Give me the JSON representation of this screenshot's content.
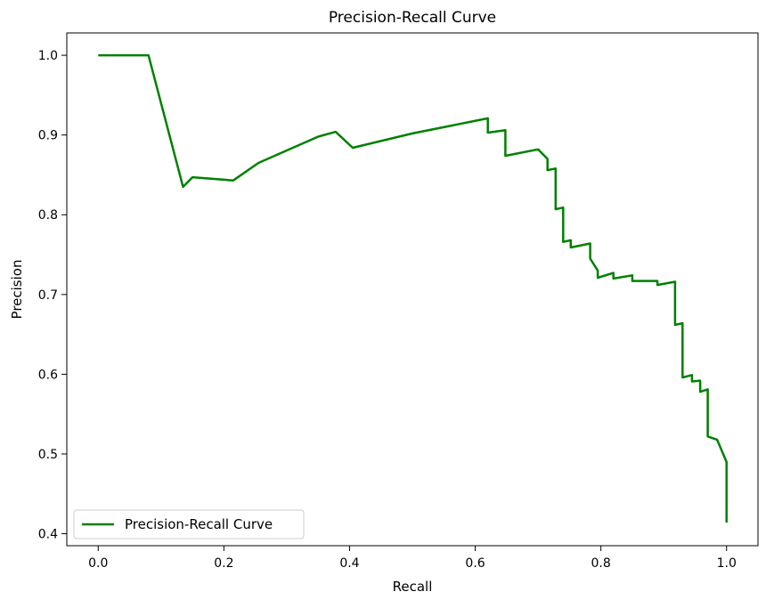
{
  "chart_data": {
    "type": "line",
    "title": "Precision-Recall Curve",
    "xlabel": "Recall",
    "ylabel": "Precision",
    "xlim": [
      -0.05,
      1.05
    ],
    "ylim": [
      0.385,
      1.028
    ],
    "xticks": [
      0.0,
      0.2,
      0.4,
      0.6,
      0.8,
      1.0
    ],
    "xtick_labels": [
      "0.0",
      "0.2",
      "0.4",
      "0.6",
      "0.8",
      "1.0"
    ],
    "yticks": [
      0.4,
      0.5,
      0.6,
      0.7,
      0.8,
      0.9,
      1.0
    ],
    "ytick_labels": [
      "0.4",
      "0.5",
      "0.6",
      "0.7",
      "0.8",
      "0.9",
      "1.0"
    ],
    "grid": false,
    "legend_position": "lower-left",
    "series": [
      {
        "name": "Precision-Recall Curve",
        "color": "#008000",
        "x": [
          0.0,
          0.08,
          0.135,
          0.15,
          0.215,
          0.255,
          0.35,
          0.378,
          0.405,
          0.5,
          0.62,
          0.62,
          0.648,
          0.648,
          0.7,
          0.715,
          0.715,
          0.728,
          0.728,
          0.74,
          0.74,
          0.752,
          0.752,
          0.783,
          0.783,
          0.795,
          0.795,
          0.82,
          0.82,
          0.85,
          0.85,
          0.89,
          0.89,
          0.918,
          0.918,
          0.93,
          0.93,
          0.945,
          0.945,
          0.958,
          0.958,
          0.97,
          0.97,
          0.985,
          1.0,
          1.0
        ],
        "y": [
          1.0,
          1.0,
          0.835,
          0.847,
          0.843,
          0.865,
          0.898,
          0.904,
          0.884,
          0.902,
          0.921,
          0.903,
          0.906,
          0.874,
          0.882,
          0.87,
          0.856,
          0.858,
          0.807,
          0.809,
          0.766,
          0.768,
          0.759,
          0.764,
          0.745,
          0.73,
          0.721,
          0.727,
          0.72,
          0.724,
          0.717,
          0.717,
          0.712,
          0.716,
          0.662,
          0.664,
          0.596,
          0.599,
          0.591,
          0.592,
          0.578,
          0.581,
          0.522,
          0.518,
          0.49,
          0.414
        ]
      }
    ]
  }
}
